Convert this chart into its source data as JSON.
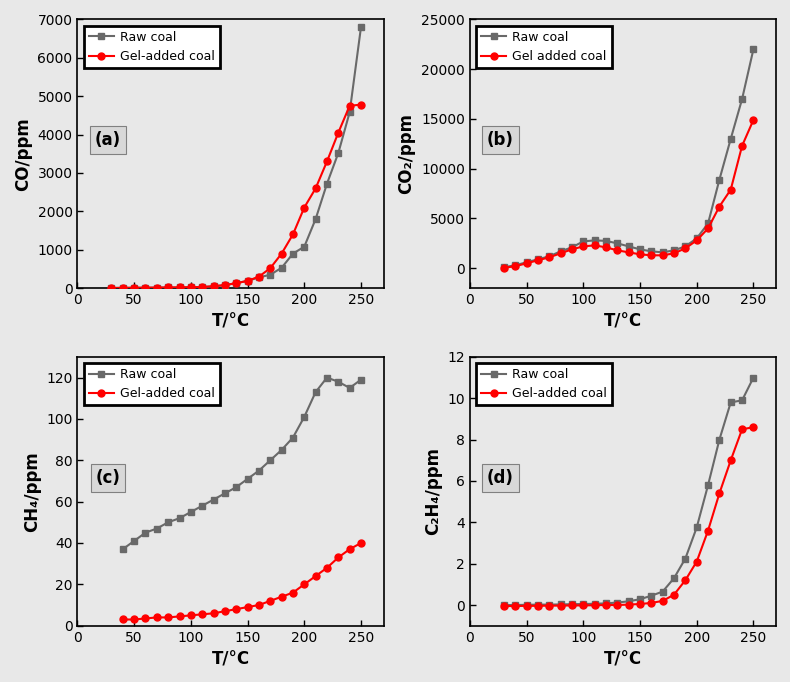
{
  "panel_a": {
    "raw_coal_x": [
      30,
      40,
      50,
      60,
      70,
      80,
      90,
      100,
      110,
      120,
      130,
      140,
      150,
      160,
      170,
      180,
      190,
      200,
      210,
      220,
      230,
      240,
      250
    ],
    "raw_coal_y": [
      5,
      8,
      10,
      12,
      15,
      18,
      20,
      25,
      30,
      50,
      80,
      130,
      190,
      280,
      350,
      530,
      900,
      1080,
      1800,
      2720,
      3520,
      4580,
      6800
    ],
    "gel_x": [
      30,
      40,
      50,
      60,
      70,
      80,
      90,
      100,
      110,
      120,
      130,
      140,
      150,
      160,
      170,
      180,
      190,
      200,
      210,
      220,
      230,
      240,
      250
    ],
    "gel_y": [
      5,
      8,
      10,
      12,
      15,
      18,
      20,
      25,
      30,
      50,
      80,
      130,
      190,
      300,
      520,
      900,
      1400,
      2100,
      2600,
      3300,
      4050,
      4750,
      4780
    ],
    "ylabel": "CO/ppm",
    "xlabel": "T/°C",
    "ylim": [
      0,
      7000
    ],
    "yticks": [
      0,
      1000,
      2000,
      3000,
      4000,
      5000,
      6000,
      7000
    ],
    "xlim": [
      0,
      270
    ],
    "xticks": [
      0,
      50,
      100,
      150,
      200,
      250
    ],
    "label": "(a)",
    "legend_raw": "Raw coal",
    "legend_gel": "Gel-added coal"
  },
  "panel_b": {
    "raw_coal_x": [
      30,
      40,
      50,
      60,
      70,
      80,
      90,
      100,
      110,
      120,
      130,
      140,
      150,
      160,
      170,
      180,
      190,
      200,
      210,
      220,
      230,
      240,
      250
    ],
    "raw_coal_y": [
      100,
      300,
      600,
      900,
      1200,
      1700,
      2100,
      2700,
      2800,
      2750,
      2500,
      2200,
      1900,
      1700,
      1600,
      1800,
      2200,
      3000,
      4500,
      8900,
      13000,
      17000,
      22000
    ],
    "gel_x": [
      30,
      40,
      50,
      60,
      70,
      80,
      90,
      100,
      110,
      120,
      130,
      140,
      150,
      160,
      170,
      180,
      190,
      200,
      210,
      220,
      230,
      240,
      250
    ],
    "gel_y": [
      50,
      200,
      500,
      800,
      1100,
      1500,
      1900,
      2200,
      2300,
      2100,
      1800,
      1600,
      1400,
      1300,
      1300,
      1500,
      2000,
      2800,
      4000,
      6200,
      7900,
      12300,
      14900
    ],
    "ylabel": "CO₂/ppm",
    "xlabel": "T/°C",
    "ylim": [
      -2000,
      25000
    ],
    "yticks": [
      0,
      5000,
      10000,
      15000,
      20000,
      25000
    ],
    "xlim": [
      0,
      270
    ],
    "xticks": [
      0,
      50,
      100,
      150,
      200,
      250
    ],
    "label": "(b)",
    "legend_raw": "Raw coal",
    "legend_gel": "Gel added coal"
  },
  "panel_c": {
    "raw_coal_x": [
      40,
      50,
      60,
      70,
      80,
      90,
      100,
      110,
      120,
      130,
      140,
      150,
      160,
      170,
      180,
      190,
      200,
      210,
      220,
      230,
      240,
      250
    ],
    "raw_coal_y": [
      37,
      41,
      45,
      47,
      50,
      52,
      55,
      58,
      61,
      64,
      67,
      71,
      75,
      80,
      85,
      91,
      101,
      113,
      120,
      118,
      115,
      119
    ],
    "gel_x": [
      40,
      50,
      60,
      70,
      80,
      90,
      100,
      110,
      120,
      130,
      140,
      150,
      160,
      170,
      180,
      190,
      200,
      210,
      220,
      230,
      240,
      250
    ],
    "gel_y": [
      3,
      3,
      3.5,
      4,
      4,
      4.5,
      5,
      5.5,
      6,
      7,
      8,
      9,
      10,
      12,
      14,
      16,
      20,
      24,
      28,
      33,
      37,
      40
    ],
    "ylabel": "CH₄/ppm",
    "xlabel": "T/°C",
    "ylim": [
      0,
      130
    ],
    "yticks": [
      0,
      20,
      40,
      60,
      80,
      100,
      120
    ],
    "xlim": [
      0,
      270
    ],
    "xticks": [
      0,
      50,
      100,
      150,
      200,
      250
    ],
    "label": "(c)",
    "legend_raw": "Raw coal",
    "legend_gel": "Gel-added coal"
  },
  "panel_d": {
    "raw_coal_x": [
      30,
      40,
      50,
      60,
      70,
      80,
      90,
      100,
      110,
      120,
      130,
      140,
      150,
      160,
      170,
      180,
      190,
      200,
      210,
      220,
      230,
      240,
      250
    ],
    "raw_coal_y": [
      0.0,
      0.0,
      0.01,
      0.02,
      0.02,
      0.03,
      0.04,
      0.05,
      0.06,
      0.08,
      0.12,
      0.18,
      0.28,
      0.45,
      0.65,
      1.3,
      2.25,
      3.75,
      5.8,
      8.0,
      9.8,
      9.9,
      11.0
    ],
    "gel_x": [
      30,
      40,
      50,
      60,
      70,
      80,
      90,
      100,
      110,
      120,
      130,
      140,
      150,
      160,
      170,
      180,
      190,
      200,
      210,
      220,
      230,
      240,
      250
    ],
    "gel_y": [
      -0.05,
      -0.05,
      -0.04,
      -0.04,
      -0.03,
      -0.03,
      -0.02,
      -0.02,
      -0.01,
      0.0,
      0.0,
      0.02,
      0.05,
      0.1,
      0.2,
      0.5,
      1.2,
      2.1,
      3.6,
      5.4,
      7.0,
      8.5,
      8.6
    ],
    "ylabel": "C₂H₄/ppm",
    "xlabel": "T/°C",
    "ylim": [
      -1,
      12
    ],
    "yticks": [
      0,
      2,
      4,
      6,
      8,
      10,
      12
    ],
    "xlim": [
      0,
      270
    ],
    "xticks": [
      0,
      50,
      100,
      150,
      200,
      250
    ],
    "label": "(d)",
    "legend_raw": "Raw coal",
    "legend_gel": "Gel-added coal"
  },
  "raw_color": "#696969",
  "gel_color": "#FF0000",
  "marker_raw": "s",
  "marker_gel": "o",
  "linewidth": 1.5,
  "markersize": 5,
  "fig_width": 7.9,
  "fig_height": 6.82,
  "bg_color": "#e8e8e8"
}
